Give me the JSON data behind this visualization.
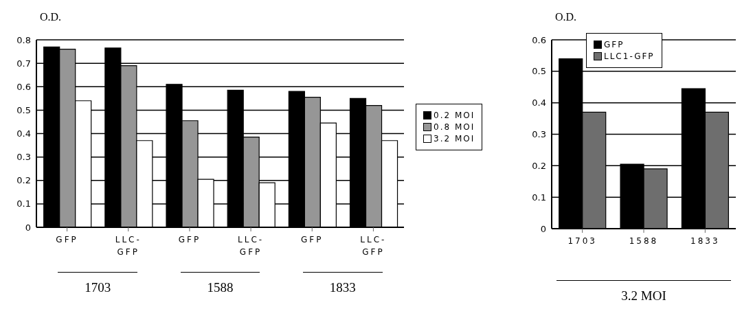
{
  "chart_data": [
    {
      "type": "bar",
      "ylabel": "O.D.",
      "categories": [
        "GFP",
        "LLC-GFP",
        "GFP",
        "LLC-GFP",
        "GFP",
        "LLC-GFP"
      ],
      "series": [
        {
          "name": "0.2 MOI",
          "color": "#000000",
          "values": [
            0.77,
            0.765,
            0.61,
            0.585,
            0.58,
            0.55
          ]
        },
        {
          "name": "0.8 MOI",
          "color": "#969696",
          "values": [
            0.76,
            0.69,
            0.455,
            0.385,
            0.555,
            0.52
          ]
        },
        {
          "name": "3.2 MOI",
          "color": "#ffffff",
          "values": [
            0.54,
            0.37,
            0.205,
            0.19,
            0.445,
            0.37
          ]
        }
      ],
      "ylim": [
        0,
        0.8
      ],
      "yticks": [
        0,
        0.1,
        0.2,
        0.3,
        0.4,
        0.5,
        0.6,
        0.7,
        0.8
      ],
      "grid": "y",
      "legend": "right",
      "annotations": [
        "1703",
        "1588",
        "1833"
      ]
    },
    {
      "type": "bar",
      "ylabel": "O.D.",
      "categories": [
        "1703",
        "1588",
        "1833"
      ],
      "series": [
        {
          "name": "GFP",
          "color": "#000000",
          "values": [
            0.54,
            0.205,
            0.445
          ]
        },
        {
          "name": "LLC1-GFP",
          "color": "#6e6e6e",
          "values": [
            0.37,
            0.19,
            0.37
          ]
        }
      ],
      "ylim": [
        0,
        0.6
      ],
      "yticks": [
        0,
        0.1,
        0.2,
        0.3,
        0.4,
        0.5,
        0.6
      ],
      "grid": "y",
      "legend": "top",
      "annotations": [
        "3.2 MOI"
      ]
    }
  ]
}
